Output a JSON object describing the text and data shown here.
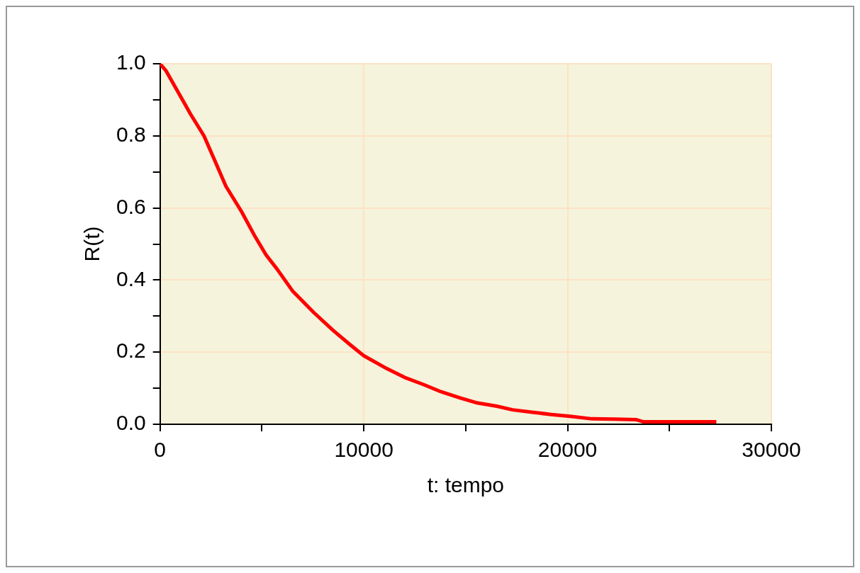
{
  "chart_data": {
    "type": "line",
    "xlabel": "t: tempo",
    "ylabel": "R(t)",
    "x": [
      0,
      300,
      1000,
      1500,
      2156,
      2700,
      3234,
      4000,
      4671,
      5200,
      5749,
      6500,
      7546,
      8500,
      9343,
      10000,
      11140,
      12000,
      12936,
      13800,
      14733,
      15500,
      16530,
      17300,
      18327,
      19200,
      20122,
      21200,
      22300,
      23350,
      23700,
      25000,
      27300
    ],
    "series": [
      {
        "color": "#ff0000",
        "values": [
          1.0,
          0.98,
          0.91,
          0.86,
          0.8,
          0.73,
          0.66,
          0.59,
          0.52,
          0.47,
          0.43,
          0.37,
          0.31,
          0.26,
          0.22,
          0.19,
          0.154,
          0.13,
          0.11,
          0.09,
          0.073,
          0.06,
          0.05,
          0.04,
          0.033,
          0.027,
          0.022,
          0.015,
          0.014,
          0.013,
          0.007,
          0.007,
          0.007
        ]
      }
    ],
    "xlim": [
      0,
      30000
    ],
    "ylim": [
      0,
      1
    ],
    "xticks": [
      0,
      {
        "value": 5000,
        "label": null
      },
      10000,
      {
        "value": 15000,
        "label": null
      },
      20000,
      {
        "value": 25000,
        "label": null
      },
      30000
    ],
    "yticks": [
      {
        "value": 0,
        "label": "0.0"
      },
      {
        "value": 0.1,
        "label": null
      },
      {
        "value": 0.2,
        "label": "0.2"
      },
      {
        "value": 0.3,
        "label": null
      },
      {
        "value": 0.4,
        "label": "0.4"
      },
      {
        "value": 0.5,
        "label": null
      },
      {
        "value": 0.6,
        "label": "0.6"
      },
      {
        "value": 0.7,
        "label": null
      },
      {
        "value": 0.8,
        "label": "0.8"
      },
      {
        "value": 0.9,
        "label": null
      },
      {
        "value": 1,
        "label": "1.0"
      }
    ],
    "grid": true,
    "marker": "none",
    "line_style": "solid"
  }
}
